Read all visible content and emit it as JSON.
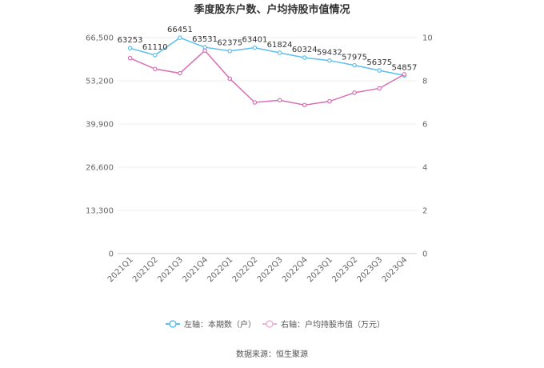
{
  "chart_data": {
    "type": "line",
    "title": "季度股东户数、户均持股市值情况",
    "categories": [
      "2021Q1",
      "2021Q2",
      "2021Q3",
      "2021Q4",
      "2022Q1",
      "2022Q2",
      "2022Q3",
      "2022Q4",
      "2023Q1",
      "2023Q2",
      "2023Q3",
      "2023Q4"
    ],
    "left_axis": {
      "min": 0,
      "max": 66500,
      "ticks": [
        "0",
        "13,300",
        "26,600",
        "39,900",
        "53,200",
        "66,500"
      ]
    },
    "right_axis": {
      "min": 0,
      "max": 10,
      "ticks": [
        "0",
        "2",
        "4",
        "6",
        "8",
        "10"
      ]
    },
    "series": [
      {
        "name": "左轴：本期数（户）",
        "axis": "left",
        "color": "#5bc0eb",
        "values": [
          63253,
          61110,
          66451,
          63531,
          62375,
          63401,
          61824,
          60324,
          59432,
          57975,
          56375,
          54857
        ],
        "labels": [
          "63253",
          "61110",
          "66451",
          "63531",
          "62375",
          "63401",
          "61824",
          "60324",
          "59432",
          "57975",
          "56375",
          "54857"
        ]
      },
      {
        "name": "右轴：户均持股市值（万元）",
        "axis": "right",
        "color": "#d670b4",
        "values": [
          9.05,
          8.55,
          8.35,
          9.4,
          8.1,
          7.0,
          7.1,
          6.88,
          7.05,
          7.45,
          7.65,
          8.3
        ]
      }
    ],
    "grid": true,
    "legend_position": "bottom"
  },
  "source_text": "数据来源：恒生聚源"
}
